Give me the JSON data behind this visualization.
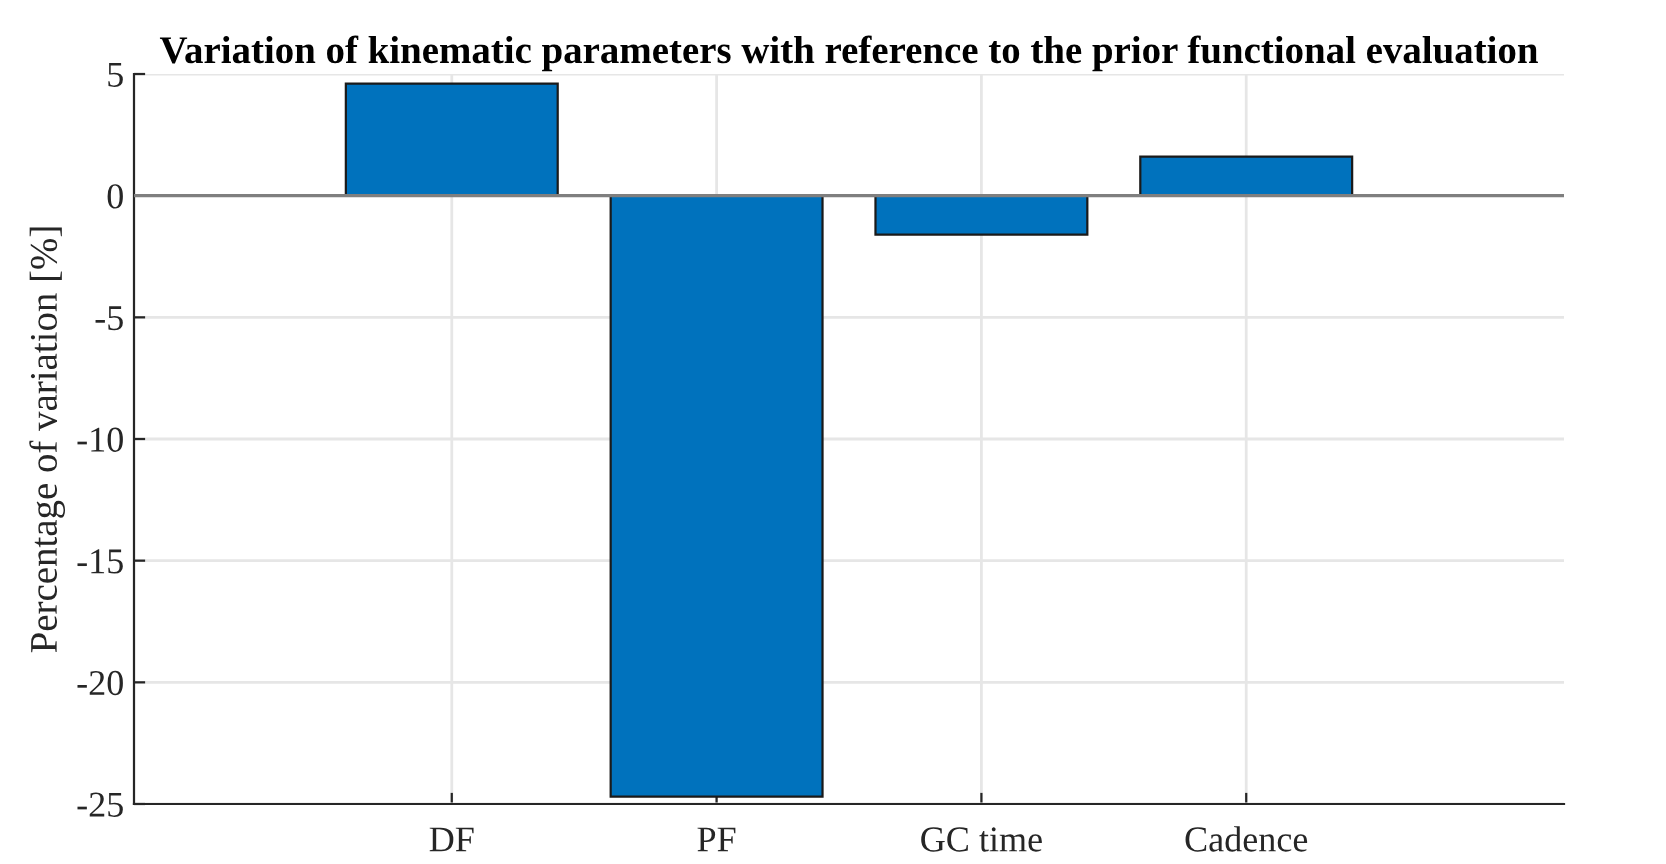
{
  "chart_data": {
    "type": "bar",
    "title": "Variation of kinematic parameters with reference to the prior functional evaluation",
    "ylabel": "Percentage of variation [%]",
    "categories": [
      null,
      "DF",
      "PF",
      "GC time",
      "Cadence",
      null
    ],
    "values": [
      null,
      4.6,
      -24.7,
      -1.6,
      1.6,
      null
    ],
    "color": "#0072bd",
    "ylim": [
      -25,
      5
    ],
    "yticks": [
      -25,
      -20,
      -15,
      -10,
      -5,
      0,
      5
    ],
    "grid": true
  }
}
